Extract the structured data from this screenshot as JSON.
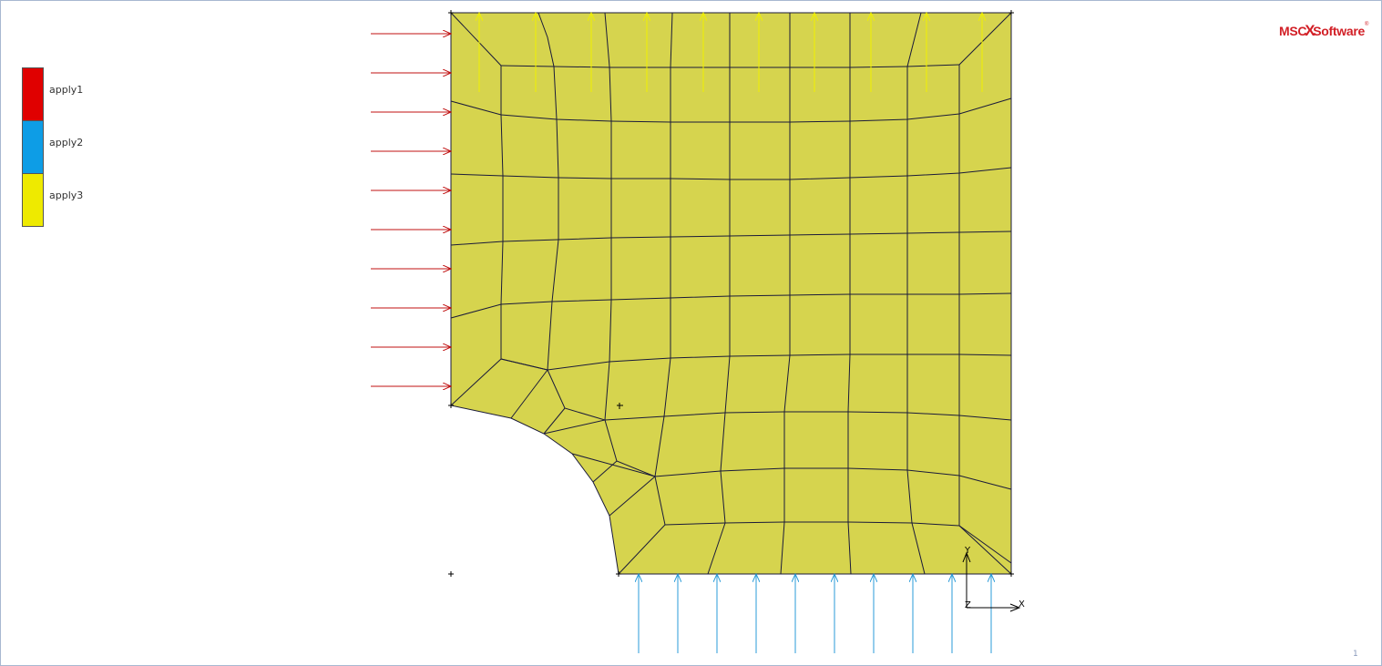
{
  "legend": {
    "items": [
      {
        "label": "apply1",
        "color": "#e00000"
      },
      {
        "label": "apply2",
        "color": "#0d9de6"
      },
      {
        "label": "apply3",
        "color": "#eeea00"
      }
    ]
  },
  "logo": {
    "brand_left": "MSC",
    "brand_mark": "X",
    "brand_right": "Software",
    "registered": "®"
  },
  "axis_triad": {
    "y_label": "Y",
    "x_label": "X",
    "z_label": "Z"
  },
  "page_number": "1",
  "colors": {
    "mesh_fill": "#d6d44e",
    "mesh_line": "#1a1a3a",
    "load_x": "#c01010",
    "load_y": "#2a9bd8",
    "load_top": "#f0f000"
  }
}
